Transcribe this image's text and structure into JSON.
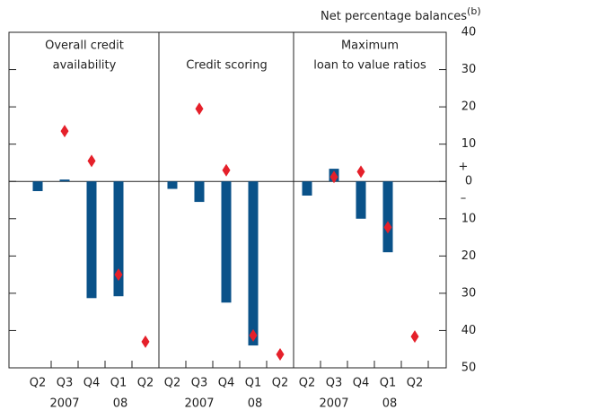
{
  "y_axis": {
    "label": "Net percentage balances",
    "label_note": "(b)",
    "ylim": [
      -50,
      40
    ],
    "yticks": [
      {
        "value": -50,
        "label": "50"
      },
      {
        "value": -40,
        "label": "40"
      },
      {
        "value": -30,
        "label": "30"
      },
      {
        "value": -20,
        "label": "20"
      },
      {
        "value": -10,
        "label": "10"
      },
      0,
      10,
      20,
      30,
      40
    ],
    "sign_labels": [
      "+",
      "–"
    ]
  },
  "chart_data": [
    {
      "type": "bar",
      "title": [
        "Overall credit",
        "availability"
      ],
      "categories": [
        "Q2",
        "Q3",
        "Q4",
        "Q1",
        "Q2"
      ],
      "year_labels": [
        "2007",
        "08"
      ],
      "series": [
        {
          "marker": "bar",
          "color": "#0a5289",
          "values": [
            -2.6,
            0.5,
            -31.3,
            -30.8,
            null
          ]
        },
        {
          "marker": "diamond",
          "color": "#e5202a",
          "values": [
            null,
            13.5,
            5.5,
            -25,
            -43
          ]
        }
      ]
    },
    {
      "type": "bar",
      "title": [
        "Credit scoring"
      ],
      "categories": [
        "Q2",
        "Q3",
        "Q4",
        "Q1",
        "Q2"
      ],
      "year_labels": [
        "2007",
        "08"
      ],
      "series": [
        {
          "marker": "bar",
          "color": "#0a5289",
          "values": [
            -2,
            -5.5,
            -32.5,
            -44,
            null
          ]
        },
        {
          "marker": "diamond",
          "color": "#e5202a",
          "values": [
            null,
            19.5,
            3,
            -41.3,
            -46.4
          ]
        }
      ]
    },
    {
      "type": "bar",
      "title": [
        "Maximum",
        "loan to value ratios"
      ],
      "categories": [
        "Q2",
        "Q3",
        "Q4",
        "Q1",
        "Q2"
      ],
      "year_labels": [
        "2007",
        "08"
      ],
      "series": [
        {
          "marker": "bar",
          "color": "#0a5289",
          "values": [
            -3.8,
            3.4,
            -10,
            -19,
            null
          ]
        },
        {
          "marker": "diamond",
          "color": "#e5202a",
          "values": [
            null,
            1.2,
            2.6,
            -12.3,
            -41.6
          ]
        }
      ]
    }
  ]
}
